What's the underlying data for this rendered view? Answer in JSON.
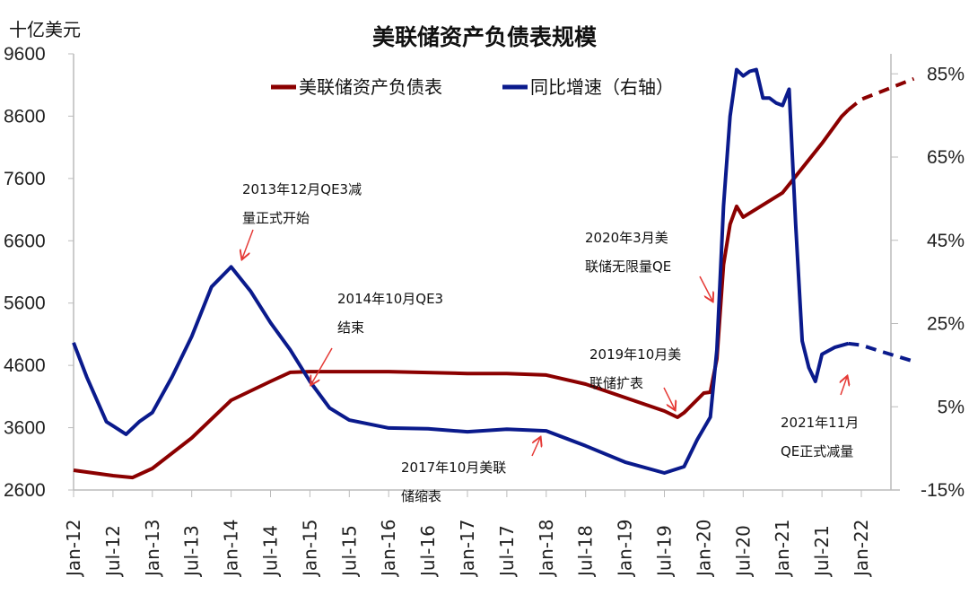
{
  "chart_data": {
    "type": "line",
    "title": "美联储资产负债表规模",
    "left_axis_unit": "十亿美元",
    "legend_position": "top",
    "grid": false,
    "x_ticks": [
      "Jan-12",
      "Jul-12",
      "Jan-13",
      "Jul-13",
      "Jan-14",
      "Jul-14",
      "Jan-15",
      "Jul-15",
      "Jan-16",
      "Jul-16",
      "Jan-17",
      "Jul-17",
      "Jan-18",
      "Jul-18",
      "Jan-19",
      "Jul-19",
      "Jan-20",
      "Jul-20",
      "Jan-21",
      "Jul-21",
      "Jan-22"
    ],
    "xlim": [
      "2012-01",
      "2022-09"
    ],
    "y_left": {
      "ticks": [
        2600,
        3600,
        4600,
        5600,
        6600,
        7600,
        8600,
        9600
      ],
      "ylim": [
        2600,
        9600
      ]
    },
    "y_right": {
      "ticks": [
        "-15%",
        "5%",
        "25%",
        "45%",
        "65%",
        "85%"
      ],
      "values": [
        -15,
        5,
        25,
        45,
        65,
        85
      ],
      "ylim": [
        -15,
        89.8
      ]
    },
    "series": [
      {
        "name": "美联储资产负债表",
        "axis": "left",
        "color": "#8B0000",
        "dashed_from": "2021-11",
        "x": [
          "2012-01",
          "2012-07",
          "2012-10",
          "2013-01",
          "2013-07",
          "2014-01",
          "2014-07",
          "2014-10",
          "2015-01",
          "2016-01",
          "2017-01",
          "2017-07",
          "2018-01",
          "2018-07",
          "2019-01",
          "2019-07",
          "2019-09",
          "2019-10",
          "2020-01",
          "2020-02",
          "2020-03",
          "2020-04",
          "2020-05",
          "2020-06",
          "2020-07",
          "2021-01",
          "2021-07",
          "2021-10",
          "2021-11",
          "2022-01",
          "2022-09"
        ],
        "values": [
          2917,
          2830,
          2800,
          2946,
          3436,
          4040,
          4343,
          4488,
          4500,
          4500,
          4470,
          4470,
          4445,
          4300,
          4084,
          3868,
          3767,
          3840,
          4156,
          4170,
          4704,
          6217,
          6865,
          7153,
          6980,
          7370,
          8162,
          8594,
          8700,
          8870,
          9200
        ]
      },
      {
        "name": "同比增速（右轴）",
        "axis": "right",
        "color": "#0A1A8C",
        "dashed_from": "2021-11",
        "x": [
          "2012-01",
          "2012-03",
          "2012-06",
          "2012-09",
          "2012-11",
          "2013-01",
          "2013-04",
          "2013-07",
          "2013-10",
          "2014-01",
          "2014-04",
          "2014-07",
          "2014-10",
          "2015-01",
          "2015-04",
          "2015-07",
          "2016-01",
          "2016-07",
          "2017-01",
          "2017-07",
          "2018-01",
          "2018-07",
          "2019-01",
          "2019-07",
          "2019-10",
          "2019-12",
          "2020-02",
          "2020-03",
          "2020-04",
          "2020-05",
          "2020-06",
          "2020-07",
          "2020-08",
          "2020-09",
          "2020-10",
          "2020-11",
          "2020-12",
          "2021-01",
          "2021-02",
          "2021-03",
          "2021-04",
          "2021-05",
          "2021-06",
          "2021-07",
          "2021-09",
          "2021-11",
          "2022-01",
          "2022-04",
          "2022-09"
        ],
        "values": [
          20.4,
          12.2,
          1.4,
          -1.6,
          1.4,
          3.6,
          12.2,
          21.9,
          33.8,
          38.6,
          32.7,
          25.2,
          18.7,
          11.1,
          4.7,
          1.8,
          -0.1,
          -0.3,
          -1.0,
          -0.4,
          -0.8,
          -4.4,
          -8.3,
          -10.9,
          -9.4,
          -2.9,
          2.5,
          18.7,
          53.2,
          74.8,
          86.0,
          84.5,
          85.6,
          86.0,
          79.2,
          79.2,
          78.0,
          77.4,
          81.3,
          48.9,
          20.8,
          14.4,
          11.1,
          17.6,
          19.3,
          20.2,
          19.8,
          18.3,
          15.9
        ]
      }
    ],
    "annotations": [
      {
        "lines": [
          "2013年12月QE3减",
          "量正式开始"
        ]
      },
      {
        "lines": [
          "2014年10月QE3",
          "结束"
        ]
      },
      {
        "lines": [
          "2020年3月美",
          "联储无限量QE"
        ]
      },
      {
        "lines": [
          "2019年10月美",
          "联储扩表"
        ]
      },
      {
        "lines": [
          "2017年10月美联",
          "储缩表"
        ]
      },
      {
        "lines": [
          "2021年11月",
          "QE正式减量"
        ]
      }
    ]
  }
}
